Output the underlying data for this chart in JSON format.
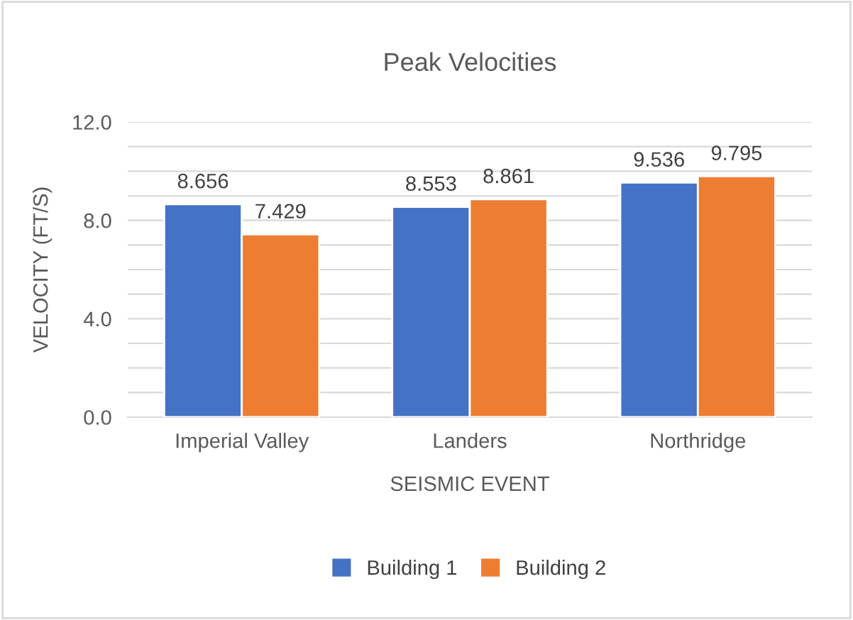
{
  "chart_data": {
    "type": "bar",
    "title": "Peak Velocities",
    "xlabel": "SEISMIC EVENT",
    "ylabel": "VELOCITY (FT/S)",
    "categories": [
      "Imperial Valley",
      "Landers",
      "Northridge"
    ],
    "series": [
      {
        "name": "Building 1",
        "color": "#4472c4",
        "values": [
          8.656,
          8.553,
          9.536
        ]
      },
      {
        "name": "Building 2",
        "color": "#ed7d31",
        "values": [
          7.429,
          8.861,
          9.795
        ]
      }
    ],
    "ylim": [
      0,
      12
    ],
    "yticks": [
      {
        "value": 0,
        "label": "0.0"
      },
      {
        "value": 1,
        "label": null
      },
      {
        "value": 2,
        "label": null
      },
      {
        "value": 3,
        "label": null
      },
      {
        "value": 4,
        "label": "4.0"
      },
      {
        "value": 5,
        "label": null
      },
      {
        "value": 6,
        "label": null
      },
      {
        "value": 7,
        "label": null
      },
      {
        "value": 8,
        "label": "8.0"
      },
      {
        "value": 9,
        "label": null
      },
      {
        "value": 10,
        "label": null
      },
      {
        "value": 11,
        "label": null
      },
      {
        "value": 12,
        "label": "12.0"
      }
    ],
    "grid": "y",
    "legend": "bottom",
    "data_labels": true
  }
}
